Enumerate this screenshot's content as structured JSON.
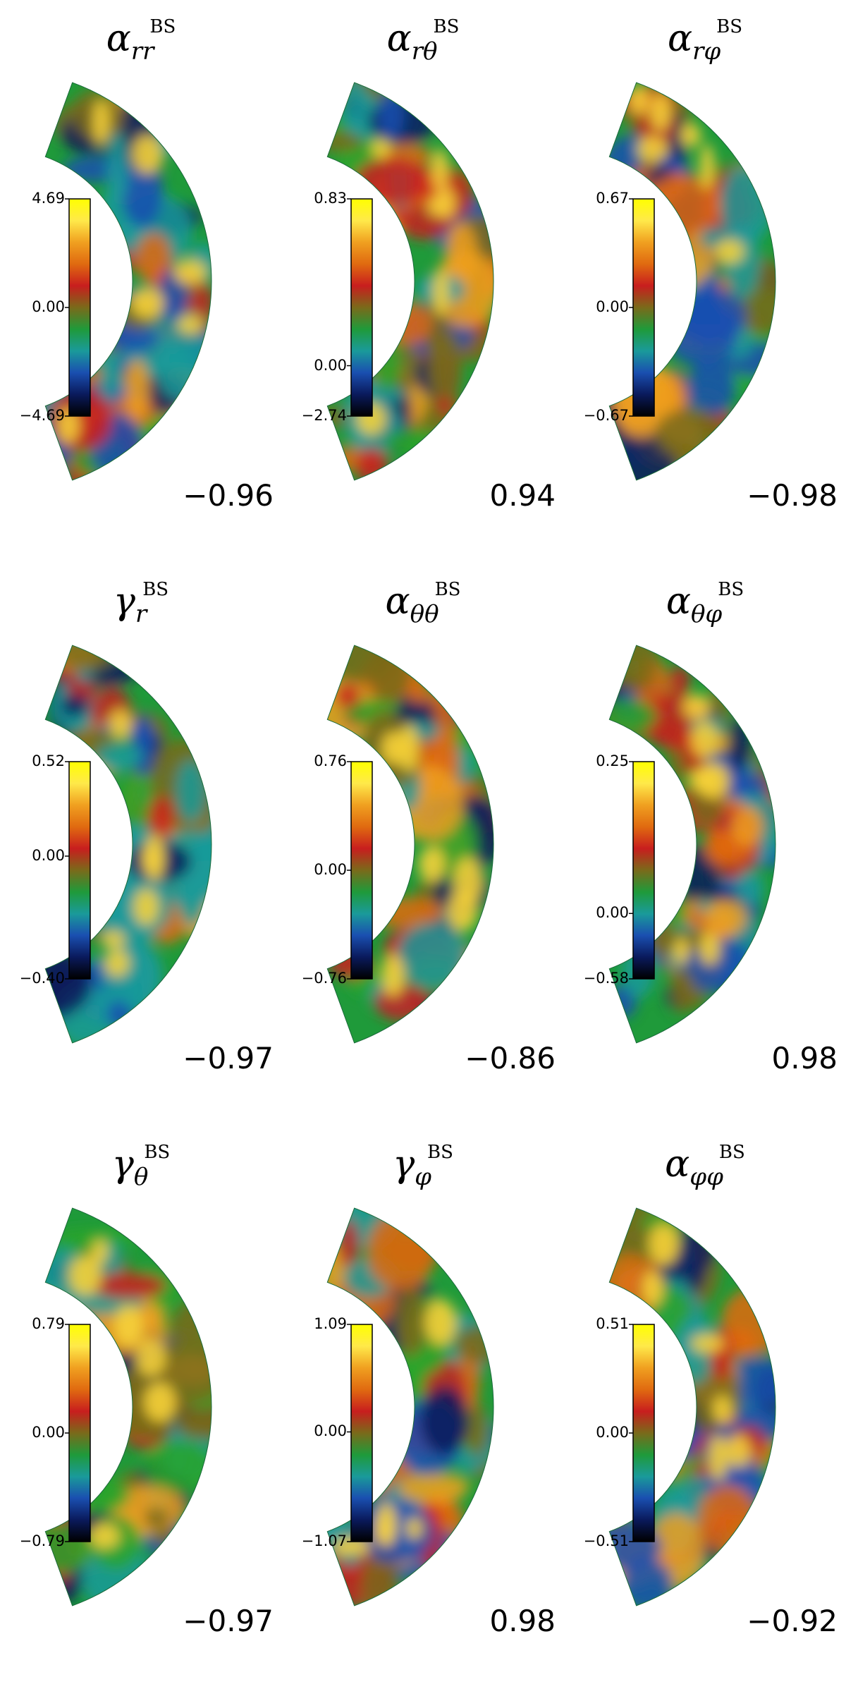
{
  "panels": [
    {
      "symbol": "α",
      "sub": "rr",
      "sup": "BS",
      "cb_max": "4.69",
      "cb_zero": "0.00",
      "cb_min": "−4.69",
      "corr": "−0.96",
      "cb_zero_frac": 0.5
    },
    {
      "symbol": "α",
      "sub": "rθ",
      "sup": "BS",
      "cb_max": "0.83",
      "cb_zero": "0.00",
      "cb_min": "−2.74",
      "corr": "0.94",
      "cb_zero_frac": 0.232
    },
    {
      "symbol": "α",
      "sub": "rφ",
      "sup": "BS",
      "cb_max": "0.67",
      "cb_zero": "0.00",
      "cb_min": "−0.67",
      "corr": "−0.98",
      "cb_zero_frac": 0.5
    },
    {
      "symbol": "γ",
      "sub": "r",
      "sup": "BS",
      "cb_max": "0.52",
      "cb_zero": "0.00",
      "cb_min": "−0.40",
      "corr": "−0.97",
      "cb_zero_frac": 0.565
    },
    {
      "symbol": "α",
      "sub": "θθ",
      "sup": "BS",
      "cb_max": "0.76",
      "cb_zero": "0.00",
      "cb_min": "−0.76",
      "corr": "−0.86",
      "cb_zero_frac": 0.5
    },
    {
      "symbol": "α",
      "sub": "θφ",
      "sup": "BS",
      "cb_max": "0.25",
      "cb_zero": "0.00",
      "cb_min": "−0.58",
      "corr": "0.98",
      "cb_zero_frac": 0.301
    },
    {
      "symbol": "γ",
      "sub": "θ",
      "sup": "BS",
      "cb_max": "0.79",
      "cb_zero": "0.00",
      "cb_min": "−0.79",
      "corr": "−0.97",
      "cb_zero_frac": 0.5
    },
    {
      "symbol": "γ",
      "sub": "φ",
      "sup": "BS",
      "cb_max": "1.09",
      "cb_zero": "0.00",
      "cb_min": "−1.07",
      "corr": "0.98",
      "cb_zero_frac": 0.505
    },
    {
      "symbol": "α",
      "sub": "φφ",
      "sup": "BS",
      "cb_max": "0.51",
      "cb_zero": "0.00",
      "cb_min": "−0.51",
      "corr": "−0.92",
      "cb_zero_frac": 0.5
    }
  ],
  "chart_data": {
    "type": "heatmap",
    "layout": "3x3 grid of meridional half-annulus contour maps",
    "panels": [
      {
        "quantity": "α_rr^BS",
        "colorbar_range": [
          -4.69,
          4.69
        ],
        "correlation": -0.96
      },
      {
        "quantity": "α_rθ^BS",
        "colorbar_range": [
          -2.74,
          0.83
        ],
        "correlation": 0.94
      },
      {
        "quantity": "α_rφ^BS",
        "colorbar_range": [
          -0.67,
          0.67
        ],
        "correlation": -0.98
      },
      {
        "quantity": "γ_r^BS",
        "colorbar_range": [
          -0.4,
          0.52
        ],
        "correlation": -0.97
      },
      {
        "quantity": "α_θθ^BS",
        "colorbar_range": [
          -0.76,
          0.76
        ],
        "correlation": -0.86
      },
      {
        "quantity": "α_θφ^BS",
        "colorbar_range": [
          -0.58,
          0.25
        ],
        "correlation": 0.98
      },
      {
        "quantity": "γ_θ^BS",
        "colorbar_range": [
          -0.79,
          0.79
        ],
        "correlation": -0.97
      },
      {
        "quantity": "γ_φ^BS",
        "colorbar_range": [
          -1.07,
          1.09
        ],
        "correlation": 0.98
      },
      {
        "quantity": "α_φφ^BS",
        "colorbar_range": [
          -0.51,
          0.51
        ],
        "correlation": -0.92
      }
    ],
    "colormap": [
      "#000000",
      "#0a1a5c",
      "#1a4fb0",
      "#1a9a9a",
      "#1f9a3a",
      "#7a6a1a",
      "#c81e1e",
      "#e06a10",
      "#f0a020",
      "#ffe94a",
      "#ffff00"
    ]
  }
}
